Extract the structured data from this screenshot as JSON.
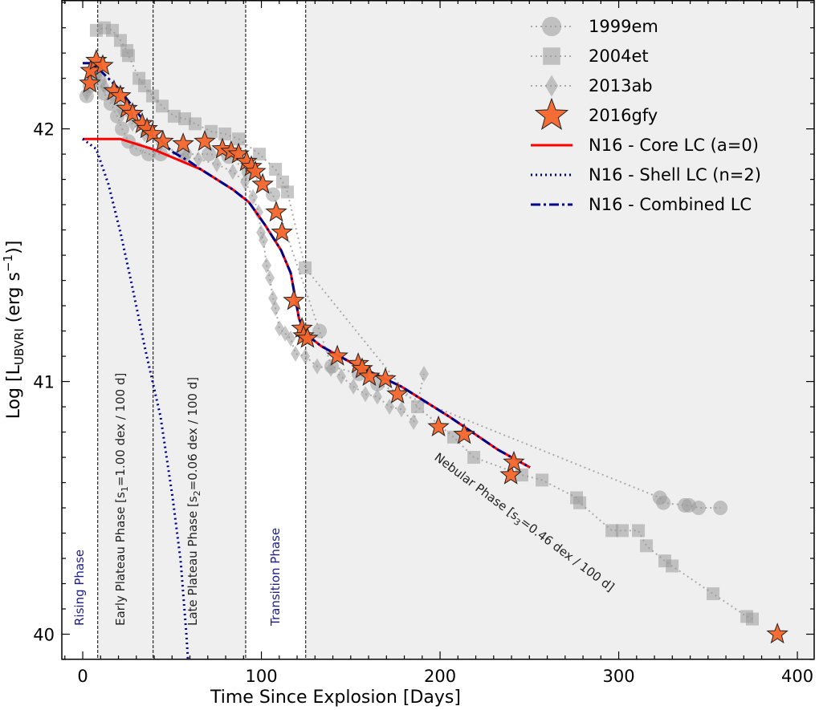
{
  "chart_data": {
    "type": "scatter",
    "xlabel": "Time Since Explosion [Days]",
    "ylabel": {
      "prefix": "Log [L",
      "subscript": "UBVRI",
      "middle": " (erg s",
      "superscript": "−1",
      "suffix": ")]"
    },
    "xlim": [
      -11.7,
      409.4
    ],
    "ylim": [
      39.9,
      42.51
    ],
    "xticks": [
      0,
      100,
      200,
      300,
      400
    ],
    "xtick_labels": [
      "0",
      "100",
      "200",
      "300",
      "400"
    ],
    "yticks": [
      40,
      41,
      42
    ],
    "ytick_labels": [
      "40",
      "41",
      "42"
    ],
    "grid": false,
    "legend_position": "top-right",
    "phase_boundaries": [
      8.4,
      39.4,
      91.2,
      124.8
    ],
    "shaded_regions": [
      [
        8.4,
        39.4
      ],
      [
        39.4,
        91.2
      ],
      [
        124.8,
        409.4
      ]
    ],
    "annotations": [
      {
        "text": "Rising Phase",
        "color": "#1c1c8c"
      },
      {
        "text": "Early Plateau Phase [s",
        "sub": "1",
        "tail": "=1.00 dex / 100 d]",
        "color": "#222222"
      },
      {
        "text": "Late Plateau Phase [s",
        "sub": "2",
        "tail": "=0.06 dex / 100 d]",
        "color": "#222222"
      },
      {
        "text": "Transition Phase",
        "color": "#1c1c8c"
      },
      {
        "text": "Nebular Phase [s",
        "sub": "3",
        "tail": "=0.46 dex / 100 d]",
        "color": "#222222"
      }
    ],
    "series": [
      {
        "name": "1999em",
        "marker": "circle",
        "color": "#999999",
        "line": "dotted",
        "points": [
          [
            2.2,
            42.13
          ],
          [
            4,
            42.17
          ],
          [
            6.7,
            42.21
          ],
          [
            9.4,
            42.19
          ],
          [
            12.1,
            42.14
          ],
          [
            15.7,
            42.1
          ],
          [
            19.3,
            42.05
          ],
          [
            22,
            42.0
          ],
          [
            25.6,
            41.95
          ],
          [
            30.1,
            41.92
          ],
          [
            36.9,
            41.9
          ],
          [
            43.6,
            41.9
          ],
          [
            57,
            41.9
          ],
          [
            70.6,
            41.9
          ],
          [
            81.8,
            41.89
          ],
          [
            93,
            41.83
          ],
          [
            106.5,
            41.74
          ],
          [
            132.6,
            41.2
          ],
          [
            139.3,
            41.06
          ],
          [
            154.6,
            41.03
          ],
          [
            165,
            40.99
          ],
          [
            323,
            40.54
          ],
          [
            325,
            40.52
          ],
          [
            337,
            40.51
          ],
          [
            339.3,
            40.51
          ],
          [
            344.7,
            40.5
          ],
          [
            356.9,
            40.5
          ]
        ]
      },
      {
        "name": "2004et",
        "marker": "square",
        "color": "#999999",
        "line": "dotted",
        "points": [
          [
            7.6,
            42.39
          ],
          [
            12.1,
            42.4
          ],
          [
            16.6,
            42.39
          ],
          [
            21.1,
            42.35
          ],
          [
            24.7,
            42.31
          ],
          [
            25.6,
            42.29
          ],
          [
            31.5,
            42.2
          ],
          [
            34.6,
            42.17
          ],
          [
            39.1,
            42.13
          ],
          [
            44.5,
            42.09
          ],
          [
            51.2,
            42.05
          ],
          [
            57.1,
            42.04
          ],
          [
            62.9,
            42.02
          ],
          [
            71.9,
            41.99
          ],
          [
            79.6,
            41.98
          ],
          [
            87.2,
            41.96
          ],
          [
            98.9,
            41.9
          ],
          [
            107.9,
            41.84
          ],
          [
            111.9,
            41.79
          ],
          [
            114.6,
            41.75
          ],
          [
            124.5,
            41.45
          ],
          [
            187.4,
            40.9
          ],
          [
            207.6,
            40.78
          ],
          [
            218.9,
            40.7
          ],
          [
            245.8,
            40.63
          ],
          [
            257.1,
            40.61
          ],
          [
            276.4,
            40.54
          ],
          [
            278.2,
            40.52
          ],
          [
            296.2,
            40.41
          ],
          [
            302,
            40.41
          ],
          [
            311,
            40.41
          ],
          [
            315.5,
            40.35
          ],
          [
            325.8,
            40.29
          ],
          [
            329.9,
            40.27
          ],
          [
            352.8,
            40.16
          ],
          [
            371.7,
            40.07
          ],
          [
            374.8,
            40.06
          ]
        ]
      },
      {
        "name": "2013ab",
        "marker": "diamond",
        "color": "#999999",
        "line": "dotted",
        "points": [
          [
            2.2,
            42.14
          ],
          [
            5.4,
            42.22
          ],
          [
            8.5,
            42.22
          ],
          [
            12.1,
            42.17
          ],
          [
            16.6,
            42.13
          ],
          [
            21.1,
            42.08
          ],
          [
            27.9,
            42.02
          ],
          [
            34.6,
            41.98
          ],
          [
            43.6,
            41.94
          ],
          [
            57.1,
            41.89
          ],
          [
            64.7,
            41.88
          ],
          [
            75,
            41.86
          ],
          [
            84,
            41.83
          ],
          [
            90.8,
            41.79
          ],
          [
            95.3,
            41.73
          ],
          [
            98.4,
            41.67
          ],
          [
            99.8,
            41.59
          ],
          [
            101.1,
            41.56
          ],
          [
            102.9,
            41.46
          ],
          [
            104.7,
            41.41
          ],
          [
            106.5,
            41.33
          ],
          [
            107.9,
            41.29
          ],
          [
            110.1,
            41.21
          ],
          [
            113.3,
            41.19
          ],
          [
            116.4,
            41.17
          ],
          [
            119.1,
            41.11
          ],
          [
            124.5,
            41.1
          ],
          [
            131.2,
            41.06
          ],
          [
            138.9,
            41.05
          ],
          [
            144.7,
            41.02
          ],
          [
            151.5,
            40.98
          ],
          [
            158.2,
            40.95
          ],
          [
            164.9,
            40.94
          ],
          [
            171.7,
            40.9
          ],
          [
            178.4,
            40.89
          ],
          [
            185.2,
            40.84
          ],
          [
            191,
            41.03
          ]
        ]
      },
      {
        "name": "2016gfy",
        "marker": "star",
        "color": "#f4652a",
        "points": [
          [
            4,
            42.18
          ],
          [
            4.5,
            42.23
          ],
          [
            7.6,
            42.27
          ],
          [
            11.2,
            42.25
          ],
          [
            17.5,
            42.15
          ],
          [
            21.1,
            42.13
          ],
          [
            24.7,
            42.08
          ],
          [
            27.9,
            42.06
          ],
          [
            33.3,
            42.02
          ],
          [
            36,
            42.0
          ],
          [
            39.1,
            41.98
          ],
          [
            44.9,
            41.95
          ],
          [
            56.2,
            41.94
          ],
          [
            68.3,
            41.95
          ],
          [
            78.2,
            41.92
          ],
          [
            83.1,
            41.91
          ],
          [
            87.2,
            41.9
          ],
          [
            91.7,
            41.87
          ],
          [
            94.4,
            41.85
          ],
          [
            96.6,
            41.83
          ],
          [
            100.7,
            41.78
          ],
          [
            108.3,
            41.67
          ],
          [
            111.5,
            41.59
          ],
          [
            118.2,
            41.32
          ],
          [
            122.7,
            41.21
          ],
          [
            123.6,
            41.18
          ],
          [
            125.8,
            41.17
          ],
          [
            142.5,
            41.1
          ],
          [
            154.2,
            41.07
          ],
          [
            156.4,
            41.05
          ],
          [
            160.4,
            41.02
          ],
          [
            169.4,
            41.01
          ],
          [
            176.2,
            40.95
          ],
          [
            199.1,
            40.82
          ],
          [
            213.5,
            40.79
          ],
          [
            239.6,
            40.63
          ],
          [
            241.3,
            40.68
          ],
          [
            388.8,
            40.0
          ]
        ]
      },
      {
        "name": "N16 - Core LC (a=0)",
        "marker": "none",
        "color": "#ff0000",
        "line": "solid",
        "points": [
          [
            0,
            41.96
          ],
          [
            21,
            41.96
          ],
          [
            39,
            41.92
          ],
          [
            66,
            41.84
          ],
          [
            84,
            41.76
          ],
          [
            93,
            41.71
          ],
          [
            102,
            41.62
          ],
          [
            111,
            41.52
          ],
          [
            116.4,
            41.43
          ],
          [
            119,
            41.33
          ],
          [
            121,
            41.25
          ],
          [
            124.5,
            41.19
          ],
          [
            133.5,
            41.14
          ],
          [
            151.5,
            41.07
          ],
          [
            178.4,
            40.98
          ],
          [
            205.4,
            40.86
          ],
          [
            232.4,
            40.73
          ],
          [
            250.3,
            40.66
          ]
        ]
      },
      {
        "name": "N16 - Shell LC (n=2)",
        "marker": "none",
        "color": "#00008b",
        "line": "dotted",
        "points": [
          [
            0,
            41.96
          ],
          [
            7.6,
            41.92
          ],
          [
            14.4,
            41.78
          ],
          [
            21.1,
            41.59
          ],
          [
            27.9,
            41.37
          ],
          [
            34.6,
            41.14
          ],
          [
            43.6,
            40.86
          ],
          [
            50.3,
            40.54
          ],
          [
            54.8,
            40.29
          ],
          [
            58,
            40.0
          ],
          [
            58.9,
            39.9
          ]
        ]
      },
      {
        "name": "N16 - Combined LC",
        "marker": "none",
        "color": "#00008b",
        "line": "dashdot",
        "points": [
          [
            0,
            42.26
          ],
          [
            5,
            42.26
          ],
          [
            10,
            42.23
          ],
          [
            20,
            42.16
          ],
          [
            30,
            42.07
          ],
          [
            40,
            41.98
          ],
          [
            50,
            41.91
          ],
          [
            60,
            41.87
          ],
          [
            66,
            41.84
          ],
          [
            84,
            41.76
          ],
          [
            93,
            41.71
          ],
          [
            102,
            41.62
          ],
          [
            111,
            41.52
          ],
          [
            116.4,
            41.43
          ],
          [
            119,
            41.33
          ],
          [
            121,
            41.25
          ],
          [
            124.5,
            41.19
          ],
          [
            133.5,
            41.14
          ],
          [
            151.5,
            41.07
          ],
          [
            178.4,
            40.98
          ],
          [
            205.4,
            40.86
          ],
          [
            232.4,
            40.73
          ],
          [
            250.3,
            40.66
          ]
        ]
      }
    ]
  }
}
